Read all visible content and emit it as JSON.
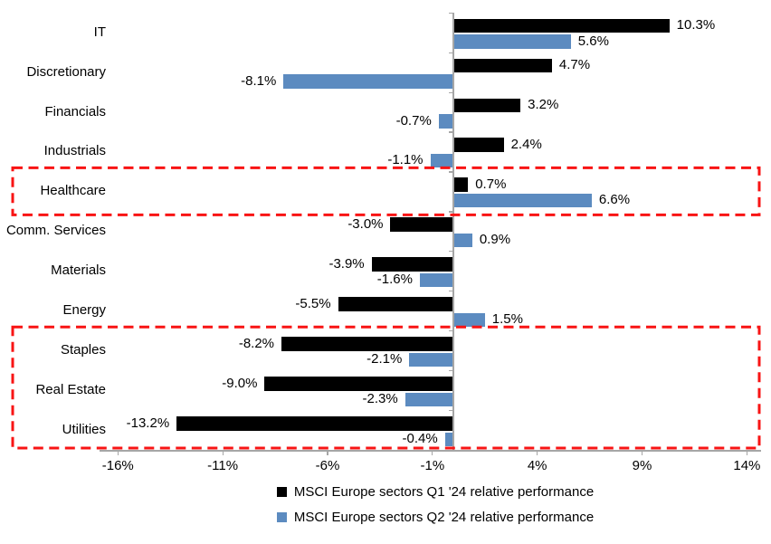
{
  "chart_data": {
    "type": "bar",
    "orientation": "horizontal",
    "title": "",
    "categories": [
      "IT",
      "Discretionary",
      "Financials",
      "Industrials",
      "Healthcare",
      "Comm. Services",
      "Materials",
      "Energy",
      "Staples",
      "Real Estate",
      "Utilities"
    ],
    "series": [
      {
        "name": "MSCI Europe sectors Q1 '24 relative performance",
        "color": "#000000",
        "values": [
          10.3,
          4.7,
          3.2,
          2.4,
          0.7,
          -3.0,
          -3.9,
          -5.5,
          -8.2,
          -9.0,
          -13.2
        ]
      },
      {
        "name": "MSCI Europe sectors Q2 '24 relative performance",
        "color": "#5c8bc0",
        "values": [
          5.6,
          -8.1,
          -0.7,
          -1.1,
          6.6,
          0.9,
          -1.6,
          1.5,
          -2.1,
          -2.3,
          -0.4
        ]
      }
    ],
    "data_labels": true,
    "data_label_format": "0.0%",
    "x_ticks": [
      -16,
      -11,
      -6,
      -1,
      4,
      9,
      14
    ],
    "x_tick_labels": [
      "-16%",
      "-11%",
      "-6%",
      "-1%",
      "4%",
      "9%",
      "14%"
    ],
    "xlim": [
      -17,
      14.7
    ],
    "grid": false,
    "legend_position": "bottom",
    "axis_color": "#a6a6a6",
    "highlight_boxes": [
      {
        "categories": [
          "Healthcare"
        ],
        "color": "#f81414",
        "style": "dashed"
      },
      {
        "categories": [
          "Staples",
          "Real Estate",
          "Utilities"
        ],
        "color": "#f81414",
        "style": "dashed"
      }
    ]
  }
}
